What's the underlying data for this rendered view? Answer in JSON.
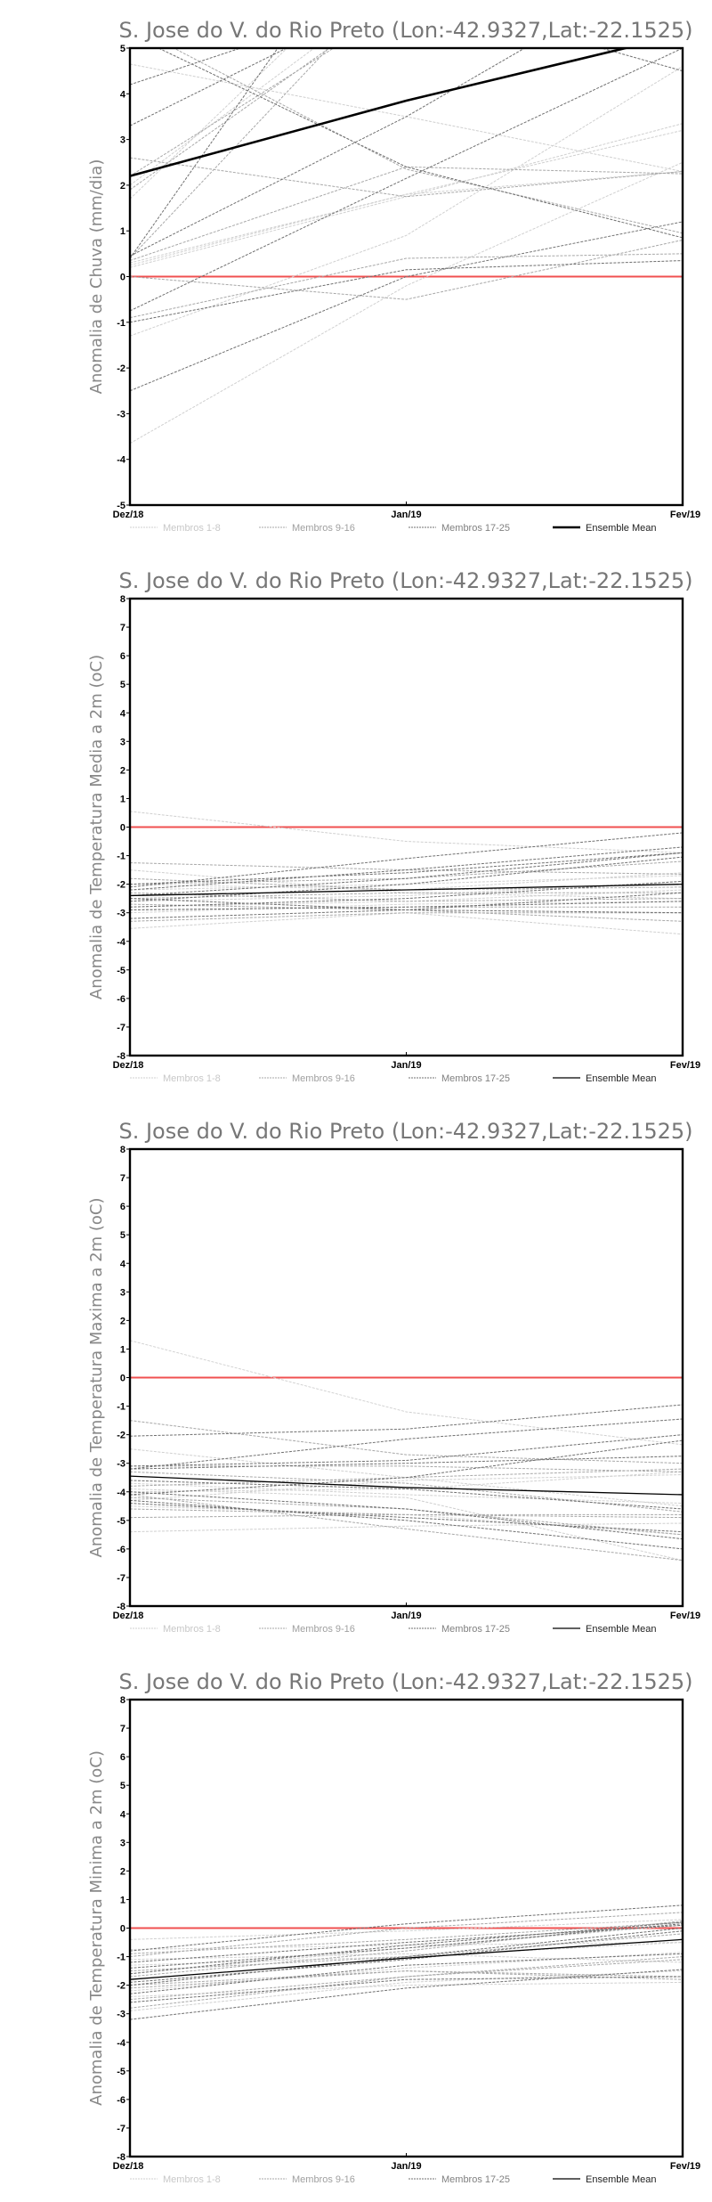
{
  "legend": {
    "labels": [
      "Membros 1-8",
      "Membros 9-16",
      "Membros 17-25",
      "Ensemble Mean"
    ],
    "colors": [
      "#d0d0d0",
      "#a8a8a8",
      "#707070",
      "#000000"
    ],
    "text_colors": [
      "#c8c8c8",
      "#a0a0a0",
      "#808080",
      "#222222"
    ]
  },
  "colors": {
    "zero_line": "#f05050",
    "mean": "#000000"
  },
  "chart_data": [
    {
      "type": "line",
      "title": "S. Jose do V. do Rio Preto (Lon:-42.9327,Lat:-22.1525)",
      "ylabel": "Anomalia de Chuva (mm/dia)",
      "x": [
        "Dez/18",
        "Jan/19",
        "Fev/19"
      ],
      "ylim": [
        -5,
        5
      ],
      "yticks": [
        "-5",
        "-4",
        "-3",
        "-2",
        "-1",
        "0",
        "1",
        "2",
        "3",
        "4",
        "5"
      ],
      "mean_bold": true,
      "ensemble_mean": [
        2.2,
        3.85,
        5.3
      ],
      "groups": [
        {
          "name": "Membros 1-8",
          "members": [
            [
              4.65,
              3.5,
              2.3
            ],
            [
              1.7,
              7.5,
              9
            ],
            [
              0.2,
              1.75,
              3.35
            ],
            [
              0.25,
              1.8,
              3.2
            ],
            [
              -1.3,
              0.9,
              4.6
            ],
            [
              -3.65,
              -0.2,
              2.5
            ],
            [
              2.0,
              6.5,
              8
            ],
            [
              0.3,
              1.8,
              2.3
            ]
          ]
        },
        {
          "name": "Membros 9-16",
          "members": [
            [
              2.6,
              1.75,
              2.3
            ],
            [
              0.35,
              2.4,
              2.25
            ],
            [
              0.0,
              -0.5,
              0.8
            ],
            [
              2.2,
              6.0,
              7.5
            ],
            [
              5.5,
              2.35,
              0.95
            ],
            [
              -0.9,
              0.4,
              0.5
            ],
            [
              1.9,
              6.2,
              8
            ],
            [
              0.4,
              6.8,
              9
            ]
          ]
        },
        {
          "name": "Membros 17-25",
          "members": [
            [
              4.2,
              6.2,
              8
            ],
            [
              3.3,
              6.3,
              8
            ],
            [
              5.3,
              2.4,
              0.85
            ],
            [
              -0.75,
              2.15,
              5.0
            ],
            [
              -1.0,
              0.15,
              0.35
            ],
            [
              -2.5,
              0.0,
              1.2
            ],
            [
              0.4,
              9,
              10
            ],
            [
              0.45,
              3.5,
              7
            ],
            [
              8,
              6.2,
              4.5
            ]
          ]
        }
      ]
    },
    {
      "type": "line",
      "title": "S. Jose do V. do Rio Preto (Lon:-42.9327,Lat:-22.1525)",
      "ylabel": "Anomalia de Temperatura Media a 2m (oC)",
      "x": [
        "Dez/18",
        "Jan/19",
        "Fev/19"
      ],
      "ylim": [
        -8,
        8
      ],
      "yticks": [
        "-8",
        "-7",
        "-6",
        "-5",
        "-4",
        "-3",
        "-2",
        "-1",
        "0",
        "1",
        "2",
        "3",
        "4",
        "5",
        "6",
        "7",
        "8"
      ],
      "mean_bold": false,
      "ensemble_mean": [
        -2.4,
        -2.2,
        -2.0
      ],
      "groups": [
        {
          "name": "Membros 1-8",
          "members": [
            [
              0.55,
              -0.5,
              -0.9
            ],
            [
              -1.5,
              -2.3,
              -2.5
            ],
            [
              -3.55,
              -3.0,
              -3.75
            ],
            [
              -2.0,
              -2.2,
              -1.6
            ],
            [
              -2.8,
              -2.6,
              -2.2
            ],
            [
              -2.6,
              -2.4,
              -1.9
            ],
            [
              -3.0,
              -2.7,
              -2.6
            ],
            [
              -2.2,
              -2.0,
              -1.7
            ]
          ]
        },
        {
          "name": "Membros 9-16",
          "members": [
            [
              -1.25,
              -1.5,
              -1.65
            ],
            [
              -2.0,
              -1.8,
              -1.2
            ],
            [
              -2.9,
              -2.8,
              -2.8
            ],
            [
              -2.5,
              -2.3,
              -2.3
            ],
            [
              -3.3,
              -3.0,
              -3.0
            ],
            [
              -1.8,
              -2.2,
              -2.1
            ],
            [
              -2.7,
              -2.9,
              -3.3
            ],
            [
              -2.3,
              -2.6,
              -2.5
            ]
          ]
        },
        {
          "name": "Membros 17-25",
          "members": [
            [
              -2.1,
              -1.1,
              -0.2
            ],
            [
              -2.2,
              -1.5,
              -0.7
            ],
            [
              -2.4,
              -1.8,
              -0.9
            ],
            [
              -2.6,
              -2.0,
              -1.05
            ],
            [
              -2.8,
              -2.5,
              -1.9
            ],
            [
              -3.2,
              -2.9,
              -2.3
            ],
            [
              -2.9,
              -2.8,
              -2.6
            ],
            [
              -2.0,
              -1.6,
              -0.9
            ],
            [
              -2.5,
              -2.9,
              -3.0
            ]
          ]
        }
      ]
    },
    {
      "type": "line",
      "title": "S. Jose do V. do Rio Preto (Lon:-42.9327,Lat:-22.1525)",
      "ylabel": "Anomalia de Temperatura Maxima a 2m (oC)",
      "x": [
        "Dez/18",
        "Jan/19",
        "Fev/19"
      ],
      "ylim": [
        -8,
        8
      ],
      "yticks": [
        "-8",
        "-7",
        "-6",
        "-5",
        "-4",
        "-3",
        "-2",
        "-1",
        "0",
        "1",
        "2",
        "3",
        "4",
        "5",
        "6",
        "7",
        "8"
      ],
      "mean_bold": false,
      "ensemble_mean": [
        -3.45,
        -3.85,
        -4.1
      ],
      "groups": [
        {
          "name": "Membros 1-8",
          "members": [
            [
              1.3,
              -1.2,
              -2.35
            ],
            [
              -2.5,
              -3.5,
              -4.5
            ],
            [
              -5.4,
              -5.2,
              -5.1
            ],
            [
              -3.9,
              -4.2,
              -6.4
            ],
            [
              -4.3,
              -3.6,
              -3.4
            ],
            [
              -3.7,
              -4.1,
              -4.4
            ],
            [
              -4.5,
              -4.8,
              -5.5
            ],
            [
              -4.0,
              -3.9,
              -3.3
            ]
          ]
        },
        {
          "name": "Membros 9-16",
          "members": [
            [
              -1.5,
              -2.7,
              -3.0
            ],
            [
              -3.1,
              -3.1,
              -3.3
            ],
            [
              -4.9,
              -4.8,
              -4.8
            ],
            [
              -4.2,
              -4.6,
              -5.5
            ],
            [
              -3.8,
              -3.5,
              -3.2
            ],
            [
              -4.1,
              -5.3,
              -6.4
            ],
            [
              -3.3,
              -3.7,
              -4.7
            ],
            [
              -4.6,
              -4.8,
              -4.9
            ]
          ]
        },
        {
          "name": "Membros 17-25",
          "members": [
            [
              -2.05,
              -1.8,
              -0.95
            ],
            [
              -3.2,
              -2.15,
              -1.45
            ],
            [
              -3.1,
              -2.9,
              -2.0
            ],
            [
              -4.1,
              -3.5,
              -2.2
            ],
            [
              -3.2,
              -3.0,
              -2.75
            ],
            [
              -4.0,
              -4.6,
              -5.65
            ],
            [
              -4.3,
              -5.0,
              -6.0
            ],
            [
              -4.4,
              -4.9,
              -5.4
            ],
            [
              -3.6,
              -3.9,
              -4.6
            ]
          ]
        }
      ]
    },
    {
      "type": "line",
      "title": "S. Jose do V. do Rio Preto (Lon:-42.9327,Lat:-22.1525)",
      "ylabel": "Anomalia de Temperatura Minima a 2m (oC)",
      "x": [
        "Dez/18",
        "Jan/19",
        "Fev/19"
      ],
      "ylim": [
        -8,
        8
      ],
      "yticks": [
        "-8",
        "-7",
        "-6",
        "-5",
        "-4",
        "-3",
        "-2",
        "-1",
        "0",
        "1",
        "2",
        "3",
        "4",
        "5",
        "6",
        "7",
        "8"
      ],
      "mean_bold": false,
      "ensemble_mean": [
        -1.8,
        -1.05,
        -0.4
      ],
      "groups": [
        {
          "name": "Membros 1-8",
          "members": [
            [
              -0.4,
              -0.1,
              0.3
            ],
            [
              -0.75,
              -0.6,
              -0.5
            ],
            [
              -1.6,
              -0.7,
              0.1
            ],
            [
              -2.2,
              -1.4,
              -0.85
            ],
            [
              -2.4,
              -2.0,
              -1.9
            ],
            [
              -1.1,
              -0.9,
              -1.2
            ],
            [
              -2.9,
              -1.9,
              -1.5
            ],
            [
              -1.3,
              -1.0,
              -0.5
            ]
          ]
        },
        {
          "name": "Membros 9-16",
          "members": [
            [
              -0.9,
              -0.4,
              0.2
            ],
            [
              -1.7,
              -0.8,
              0.25
            ],
            [
              -2.1,
              -1.5,
              -1.7
            ],
            [
              -2.5,
              -1.7,
              -1.1
            ],
            [
              -1.0,
              0.0,
              0.55
            ],
            [
              -1.5,
              -1.0,
              -0.2
            ],
            [
              -2.0,
              -1.5,
              -1.8
            ],
            [
              -2.8,
              -1.7,
              -1.0
            ]
          ]
        },
        {
          "name": "Membros 17-25",
          "members": [
            [
              -0.8,
              0.15,
              0.8
            ],
            [
              -1.2,
              -0.5,
              0.1
            ],
            [
              -1.6,
              -0.6,
              0.2
            ],
            [
              -2.0,
              -1.0,
              0.0
            ],
            [
              -2.3,
              -1.3,
              -0.9
            ],
            [
              -3.2,
              -2.1,
              -1.45
            ],
            [
              -2.6,
              -1.8,
              -1.7
            ],
            [
              -1.9,
              -1.1,
              -0.1
            ],
            [
              -1.4,
              -0.7,
              0.15
            ]
          ]
        }
      ]
    }
  ]
}
